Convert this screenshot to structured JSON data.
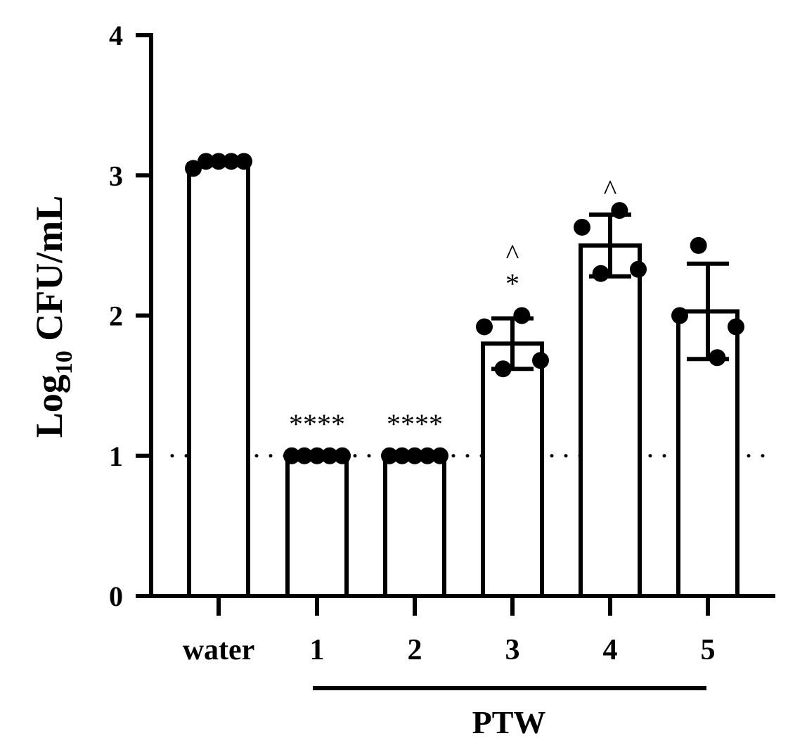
{
  "chart_data": {
    "type": "bar",
    "ylabel_prefix": "Log",
    "ylabel_sub": "10",
    "ylabel_suffix": " CFU/mL",
    "ylim": [
      0,
      4
    ],
    "yticks": [
      "0",
      "1",
      "2",
      "3",
      "4"
    ],
    "categories": [
      "water",
      "1",
      "2",
      "3",
      "4",
      "5"
    ],
    "group_label": "PTW",
    "values": [
      3.08,
      1.0,
      1.0,
      1.8,
      2.5,
      2.03
    ],
    "error": [
      0.0,
      0.0,
      0.0,
      0.18,
      0.22,
      0.34
    ],
    "points": [
      [
        3.05,
        3.1,
        3.1,
        3.1,
        3.1
      ],
      [
        1.0,
        1.0,
        1.0,
        1.0,
        1.0
      ],
      [
        1.0,
        1.0,
        1.0,
        1.0,
        1.0
      ],
      [
        1.92,
        1.62,
        2.0,
        1.68
      ],
      [
        2.63,
        2.3,
        2.75,
        2.33
      ],
      [
        2.0,
        2.5,
        1.7,
        1.92
      ]
    ],
    "annotations": [
      {
        "category": "1",
        "text": "****"
      },
      {
        "category": "2",
        "text": "****"
      },
      {
        "category": "3",
        "text": "*"
      },
      {
        "category": "3",
        "text": "^"
      },
      {
        "category": "4",
        "text": "^"
      }
    ],
    "reference_line": 1.0
  }
}
